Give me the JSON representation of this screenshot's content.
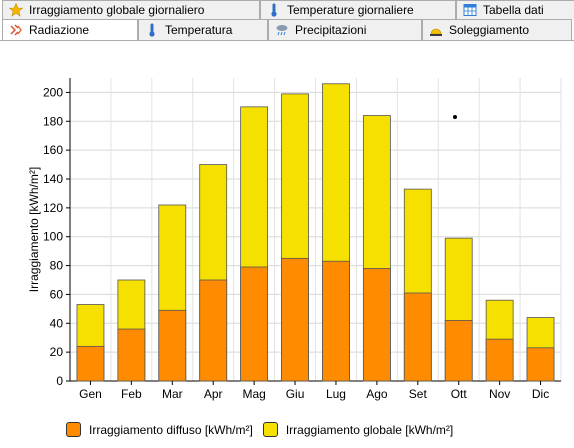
{
  "tabs_top": [
    {
      "label": "Irraggiamento globale giornaliero",
      "icon": "star-icon"
    },
    {
      "label": "Temperature giornaliere",
      "icon": "thermometer-icon"
    },
    {
      "label": "Tabella dati",
      "icon": "table-icon"
    }
  ],
  "tabs_bottom": [
    {
      "label": "Radiazione",
      "icon": "radiation-icon",
      "active": true
    },
    {
      "label": "Temperatura",
      "icon": "thermometer-icon"
    },
    {
      "label": "Precipitazioni",
      "icon": "rain-cloud-icon"
    },
    {
      "label": "Soleggiamento",
      "icon": "sunrise-icon"
    }
  ],
  "chart_data": {
    "type": "bar",
    "stacked_overlay": true,
    "categories": [
      "Gen",
      "Feb",
      "Mar",
      "Apr",
      "Mag",
      "Giu",
      "Lug",
      "Ago",
      "Set",
      "Ott",
      "Nov",
      "Dic"
    ],
    "series": [
      {
        "name": "Irraggiamento diffuso [kWh/m²]",
        "color": "#ff8c00",
        "values": [
          24,
          36,
          49,
          70,
          79,
          85,
          83,
          78,
          61,
          42,
          29,
          23
        ]
      },
      {
        "name": "Irraggiamento globale [kWh/m²]",
        "color": "#f5e000",
        "values": [
          53,
          70,
          122,
          150,
          190,
          199,
          206,
          184,
          133,
          99,
          56,
          44
        ]
      }
    ],
    "ylabel": "Irraggiamento [kWh/m²]",
    "xlabel": "",
    "ylim": [
      0,
      210
    ],
    "yticks": [
      0,
      20,
      40,
      60,
      80,
      100,
      120,
      140,
      160,
      180,
      200
    ],
    "grid": true,
    "legend_position": "bottom"
  }
}
